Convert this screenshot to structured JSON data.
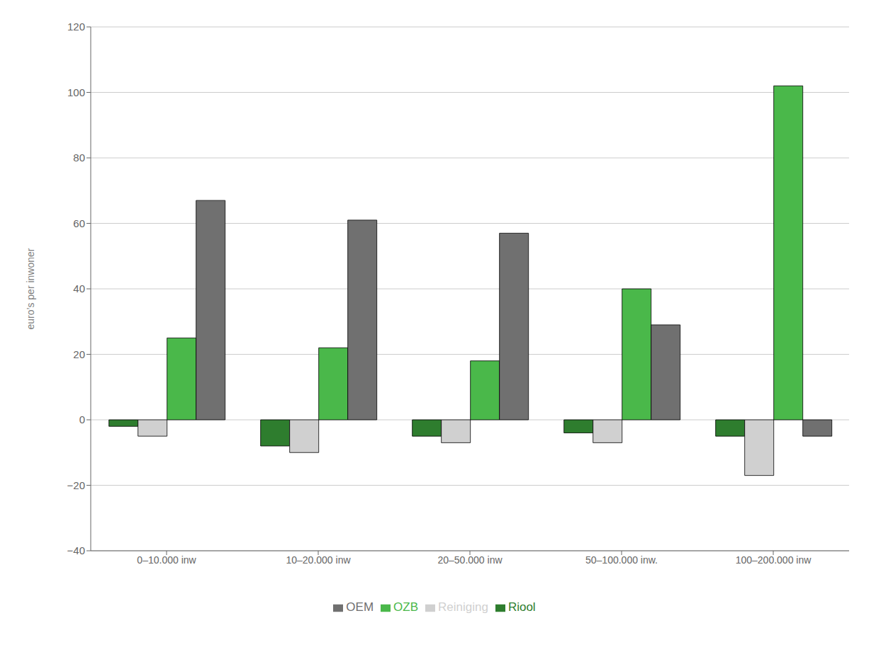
{
  "chart_data": {
    "type": "bar",
    "categories": [
      "0–10.000 inw",
      "10–20.000 inw",
      "20–50.000 inw",
      "50–100.000 inw.",
      "100–200.000 inw"
    ],
    "series": [
      {
        "name": "Riool",
        "color": "#2e7d2e",
        "values": [
          -2,
          -8,
          -5,
          -4,
          -5
        ]
      },
      {
        "name": "Reiniging",
        "color": "#d0d0d0",
        "values": [
          -5,
          -10,
          -7,
          -7,
          -17
        ]
      },
      {
        "name": "OZB",
        "color": "#4ab84a",
        "values": [
          25,
          22,
          18,
          40,
          102
        ]
      },
      {
        "name": "OEM",
        "color": "#707070",
        "values": [
          67,
          61,
          57,
          29,
          -5
        ]
      }
    ],
    "ylabel": "euro’s per inwoner",
    "ylim": [
      -40,
      120
    ],
    "yticks": [
      {
        "value": -40,
        "label": "−40"
      },
      {
        "value": -20,
        "label": "−20"
      },
      0,
      20,
      40,
      60,
      80,
      100,
      120
    ],
    "grid": true,
    "legend": "bottom"
  }
}
